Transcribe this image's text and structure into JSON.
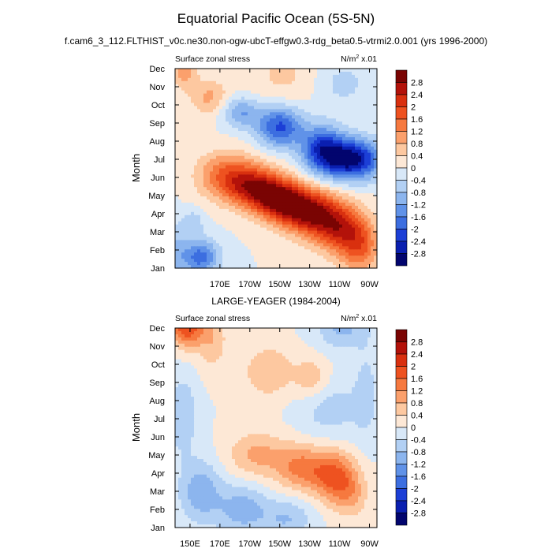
{
  "figure": {
    "title": "Equatorial Pacific Ocean (5S-5N)",
    "subtitle": "f.cam6_3_112.FLTHIST_v0c.ne30.non-ogw-ubcT-effgw0.3-rdg_beta0.5-vtrmi2.0.001 (yrs 1996-2000)"
  },
  "colorbar": {
    "levels": [
      "2.8",
      "2.4",
      "2",
      "1.6",
      "1.2",
      "0.8",
      "0.4",
      "0",
      "-0.4",
      "-0.8",
      "-1.2",
      "-1.6",
      "-2",
      "-2.4",
      "-2.8"
    ],
    "colors": [
      "#7a0403",
      "#b3120a",
      "#d9300f",
      "#ee5220",
      "#f6793f",
      "#fba06c",
      "#fdc8a0",
      "#fde8d6",
      "#d8e8f8",
      "#b2d0f4",
      "#8cb5ee",
      "#6092e8",
      "#3c6ee0",
      "#1c3fd6",
      "#0a1fb0",
      "#02056e"
    ]
  },
  "chart_data": [
    {
      "type": "heatmap",
      "title": "",
      "left_string": "Surface zonal stress",
      "right_string": "N/m",
      "units_exponent": "2",
      "units_suffix": " x.01",
      "ylabel": "Month",
      "yticks": [
        "Jan",
        "Feb",
        "Mar",
        "Apr",
        "May",
        "Jun",
        "Jul",
        "Aug",
        "Sep",
        "Oct",
        "Nov",
        "Dec"
      ],
      "xticks": [
        "170E",
        "170W",
        "150W",
        "130W",
        "110W",
        "90W"
      ],
      "xtick_lon": [
        170,
        190,
        210,
        230,
        250,
        270
      ],
      "xlim": [
        140,
        275
      ],
      "features": [
        {
          "lon": 157,
          "month": 0.6,
          "amp": -1.8,
          "slon": 9,
          "smon": 0.7
        },
        {
          "lon": 140,
          "month": 0.9,
          "amp": -0.7,
          "slon": 6,
          "smon": 1.2
        },
        {
          "lon": 152,
          "month": 2.5,
          "amp": -0.7,
          "slon": 5,
          "smon": 0.5
        },
        {
          "lon": 175,
          "month": 5.1,
          "amp": 1.6,
          "slon": 14,
          "smon": 0.9
        },
        {
          "lon": 195,
          "month": 4.4,
          "amp": 2.3,
          "slon": 13,
          "smon": 0.8
        },
        {
          "lon": 213,
          "month": 3.6,
          "amp": 2.7,
          "slon": 12,
          "smon": 0.8
        },
        {
          "lon": 232,
          "month": 3.0,
          "amp": 2.4,
          "slon": 12,
          "smon": 0.9
        },
        {
          "lon": 250,
          "month": 2.2,
          "amp": 2.0,
          "slon": 11,
          "smon": 1.0
        },
        {
          "lon": 264,
          "month": 1.2,
          "amp": 1.5,
          "slon": 9,
          "smon": 1.1
        },
        {
          "lon": 258,
          "month": 6.0,
          "amp": -3.0,
          "slon": 14,
          "smon": 0.8
        },
        {
          "lon": 238,
          "month": 6.6,
          "amp": -2.0,
          "slon": 10,
          "smon": 0.9
        },
        {
          "lon": 210,
          "month": 7.8,
          "amp": -2.1,
          "slon": 11,
          "smon": 0.8
        },
        {
          "lon": 184,
          "month": 8.6,
          "amp": -1.2,
          "slon": 9,
          "smon": 0.6
        },
        {
          "lon": 163,
          "month": 9.4,
          "amp": 0.9,
          "slon": 9,
          "smon": 0.7
        },
        {
          "lon": 146,
          "month": 10.9,
          "amp": 1.0,
          "slon": 6,
          "smon": 0.7
        },
        {
          "lon": 215,
          "month": 10.5,
          "amp": 0.5,
          "slon": 20,
          "smon": 1.2
        },
        {
          "lon": 250,
          "month": 10.2,
          "amp": -0.6,
          "slon": 15,
          "smon": 1.0
        }
      ]
    },
    {
      "type": "heatmap",
      "title": "LARGE-YEAGER (1984-2004)",
      "left_string": "Surface zonal stress",
      "right_string": "N/m",
      "units_exponent": "2",
      "units_suffix": " x.01",
      "ylabel": "Month",
      "yticks": [
        "Jan",
        "Feb",
        "Mar",
        "Apr",
        "May",
        "Jun",
        "Jul",
        "Aug",
        "Sep",
        "Oct",
        "Nov",
        "Dec"
      ],
      "xticks": [
        "150E",
        "170E",
        "170W",
        "150W",
        "130W",
        "110W",
        "90W"
      ],
      "xtick_lon": [
        150,
        170,
        190,
        210,
        230,
        250,
        270
      ],
      "xlim": [
        140,
        275
      ],
      "features": [
        {
          "lon": 148,
          "month": 11.1,
          "amp": 2.0,
          "slon": 8,
          "smon": 0.8
        },
        {
          "lon": 165,
          "month": 10.4,
          "amp": 0.7,
          "slon": 7,
          "smon": 1.2
        },
        {
          "lon": 203,
          "month": 8.6,
          "amp": 0.8,
          "slon": 12,
          "smon": 1.0
        },
        {
          "lon": 232,
          "month": 8.2,
          "amp": 0.8,
          "slon": 8,
          "smon": 0.8
        },
        {
          "lon": 195,
          "month": 4.0,
          "amp": 0.9,
          "slon": 14,
          "smon": 0.9
        },
        {
          "lon": 225,
          "month": 3.3,
          "amp": 1.3,
          "slon": 12,
          "smon": 0.9
        },
        {
          "lon": 247,
          "month": 2.8,
          "amp": 1.6,
          "slon": 10,
          "smon": 1.0
        },
        {
          "lon": 258,
          "month": 1.8,
          "amp": 0.7,
          "slon": 8,
          "smon": 0.9
        },
        {
          "lon": 145,
          "month": 6.2,
          "amp": -0.8,
          "slon": 7,
          "smon": 1.5
        },
        {
          "lon": 157,
          "month": 2.0,
          "amp": -1.1,
          "slon": 10,
          "smon": 1.2
        },
        {
          "lon": 185,
          "month": 1.0,
          "amp": -1.0,
          "slon": 12,
          "smon": 1.0
        },
        {
          "lon": 215,
          "month": 0.5,
          "amp": -0.8,
          "slon": 12,
          "smon": 0.8
        },
        {
          "lon": 243,
          "month": 6.6,
          "amp": -0.6,
          "slon": 15,
          "smon": 1.3
        },
        {
          "lon": 252,
          "month": 11.0,
          "amp": -0.9,
          "slon": 12,
          "smon": 0.8
        },
        {
          "lon": 268,
          "month": 7.5,
          "amp": -0.5,
          "slon": 6,
          "smon": 2.0
        }
      ]
    }
  ]
}
